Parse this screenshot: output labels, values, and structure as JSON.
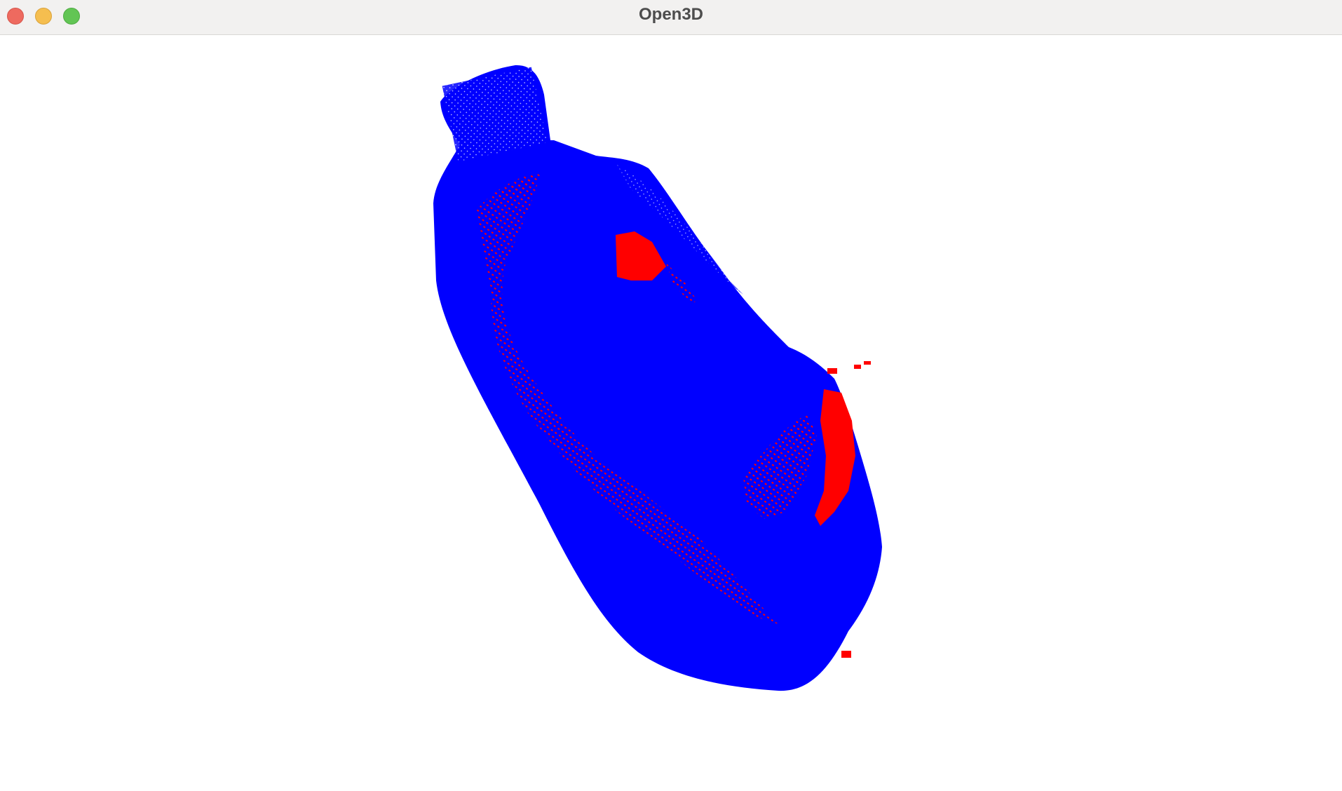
{
  "window": {
    "title": "Open3D",
    "controls": {
      "close": "close-button",
      "minimize": "minimize-button",
      "zoom": "zoom-button"
    }
  },
  "viewport": {
    "background_color": "#ffffff",
    "point_cloud": {
      "object": "bottle",
      "primary_color": "#0000ff",
      "highlight_color": "#ff0000"
    }
  }
}
